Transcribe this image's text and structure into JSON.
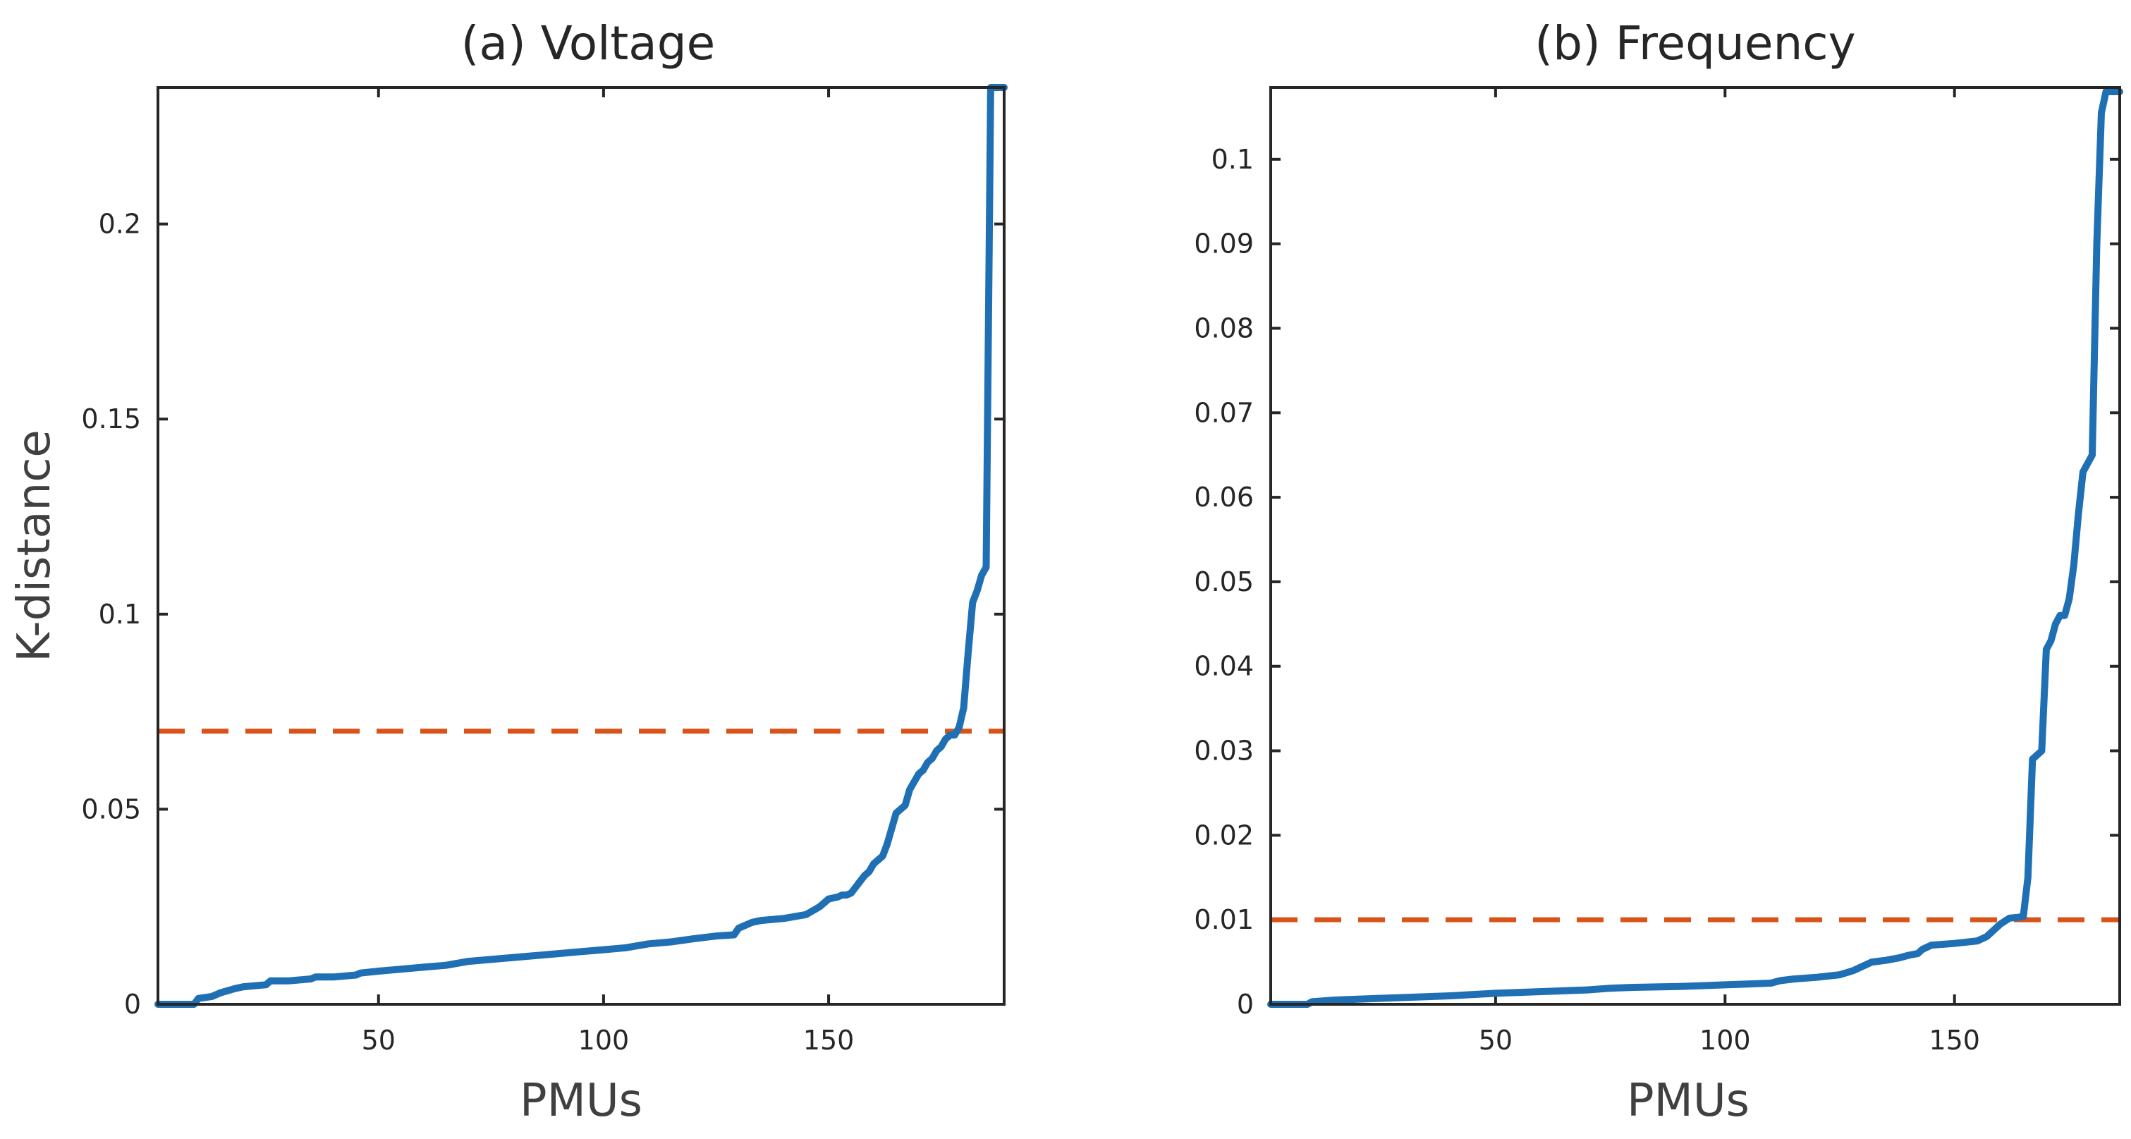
{
  "chart_data": [
    {
      "type": "line",
      "title": "(a) Voltage",
      "xlabel": "PMUs",
      "ylabel": "K-distance",
      "xlim": [
        1,
        189
      ],
      "ylim": [
        0,
        0.235
      ],
      "xticks": [
        50,
        100,
        150
      ],
      "xtick_labels": [
        "50",
        "100",
        "150"
      ],
      "yticks": [
        0,
        0.05,
        0.1,
        0.15,
        0.2
      ],
      "ytick_labels": [
        "0",
        "0.05",
        "0.1",
        "0.15",
        "0.2"
      ],
      "threshold": 0.07,
      "colors": {
        "line": "#1f6fb4",
        "threshold": "#d95319"
      },
      "series": [
        {
          "name": "K-distance",
          "x": [
            1,
            9,
            10,
            13,
            15,
            18,
            20,
            25,
            26,
            30,
            35,
            36,
            40,
            45,
            46,
            50,
            55,
            60,
            65,
            70,
            75,
            80,
            85,
            90,
            95,
            100,
            105,
            110,
            115,
            120,
            125,
            129,
            130,
            133,
            135,
            140,
            145,
            148,
            149,
            150,
            152,
            153,
            154,
            155,
            156,
            157,
            158,
            159,
            160,
            161,
            162,
            163,
            164,
            165,
            166,
            167,
            168,
            169,
            170,
            171,
            172,
            173,
            174,
            175,
            176,
            177,
            178,
            179,
            180,
            181,
            182,
            183,
            184,
            185,
            186,
            187,
            188,
            189
          ],
          "values": [
            0,
            0,
            0.0015,
            0.002,
            0.003,
            0.004,
            0.0045,
            0.005,
            0.006,
            0.006,
            0.0065,
            0.007,
            0.007,
            0.0075,
            0.008,
            0.0085,
            0.009,
            0.0095,
            0.01,
            0.011,
            0.0115,
            0.012,
            0.0125,
            0.013,
            0.0135,
            0.014,
            0.0145,
            0.0155,
            0.016,
            0.0168,
            0.0175,
            0.0178,
            0.0195,
            0.021,
            0.0215,
            0.022,
            0.023,
            0.025,
            0.026,
            0.027,
            0.0275,
            0.028,
            0.028,
            0.0285,
            0.03,
            0.0315,
            0.033,
            0.034,
            0.036,
            0.037,
            0.038,
            0.041,
            0.045,
            0.049,
            0.05,
            0.051,
            0.055,
            0.057,
            0.059,
            0.06,
            0.062,
            0.063,
            0.065,
            0.066,
            0.068,
            0.069,
            0.069,
            0.071,
            0.076,
            0.09,
            0.103,
            0.106,
            0.11,
            0.112,
            0.235,
            0.235,
            0.235,
            0.235
          ]
        }
      ]
    },
    {
      "type": "line",
      "title": "(b) Frequency",
      "xlabel": "PMUs",
      "ylabel": "",
      "xlim": [
        1,
        186
      ],
      "ylim": [
        0,
        0.1085
      ],
      "xticks": [
        50,
        100,
        150
      ],
      "xtick_labels": [
        "50",
        "100",
        "150"
      ],
      "yticks": [
        0,
        0.01,
        0.02,
        0.03,
        0.04,
        0.05,
        0.06,
        0.07,
        0.08,
        0.09,
        0.1
      ],
      "ytick_labels": [
        "0",
        "0.01",
        "0.02",
        "0.03",
        "0.04",
        "0.05",
        "0.06",
        "0.07",
        "0.08",
        "0.09",
        "0.1"
      ],
      "threshold": 0.01,
      "colors": {
        "line": "#1f6fb4",
        "threshold": "#d95319"
      },
      "series": [
        {
          "name": "K-distance",
          "x": [
            1,
            9,
            10,
            15,
            20,
            30,
            40,
            50,
            60,
            70,
            75,
            80,
            90,
            95,
            100,
            105,
            110,
            112,
            115,
            120,
            125,
            128,
            130,
            132,
            135,
            138,
            140,
            142,
            143,
            145,
            150,
            155,
            157,
            160,
            162,
            164,
            165,
            166,
            167,
            168,
            169,
            170,
            171,
            172,
            173,
            174,
            175,
            176,
            177,
            178,
            179,
            180,
            181,
            182,
            183,
            184,
            185,
            186
          ],
          "values": [
            0,
            0,
            0.0003,
            0.0005,
            0.0006,
            0.0008,
            0.001,
            0.0013,
            0.0015,
            0.0017,
            0.0019,
            0.002,
            0.0021,
            0.0022,
            0.0023,
            0.0024,
            0.0025,
            0.0028,
            0.003,
            0.0032,
            0.0035,
            0.004,
            0.0045,
            0.005,
            0.0052,
            0.0055,
            0.0058,
            0.006,
            0.0065,
            0.007,
            0.0072,
            0.0075,
            0.008,
            0.0095,
            0.0102,
            0.0103,
            0.0104,
            0.015,
            0.029,
            0.0295,
            0.03,
            0.042,
            0.043,
            0.045,
            0.046,
            0.046,
            0.048,
            0.052,
            0.058,
            0.063,
            0.064,
            0.065,
            0.09,
            0.1055,
            0.108,
            0.108,
            0.108,
            0.108
          ]
        }
      ]
    }
  ]
}
